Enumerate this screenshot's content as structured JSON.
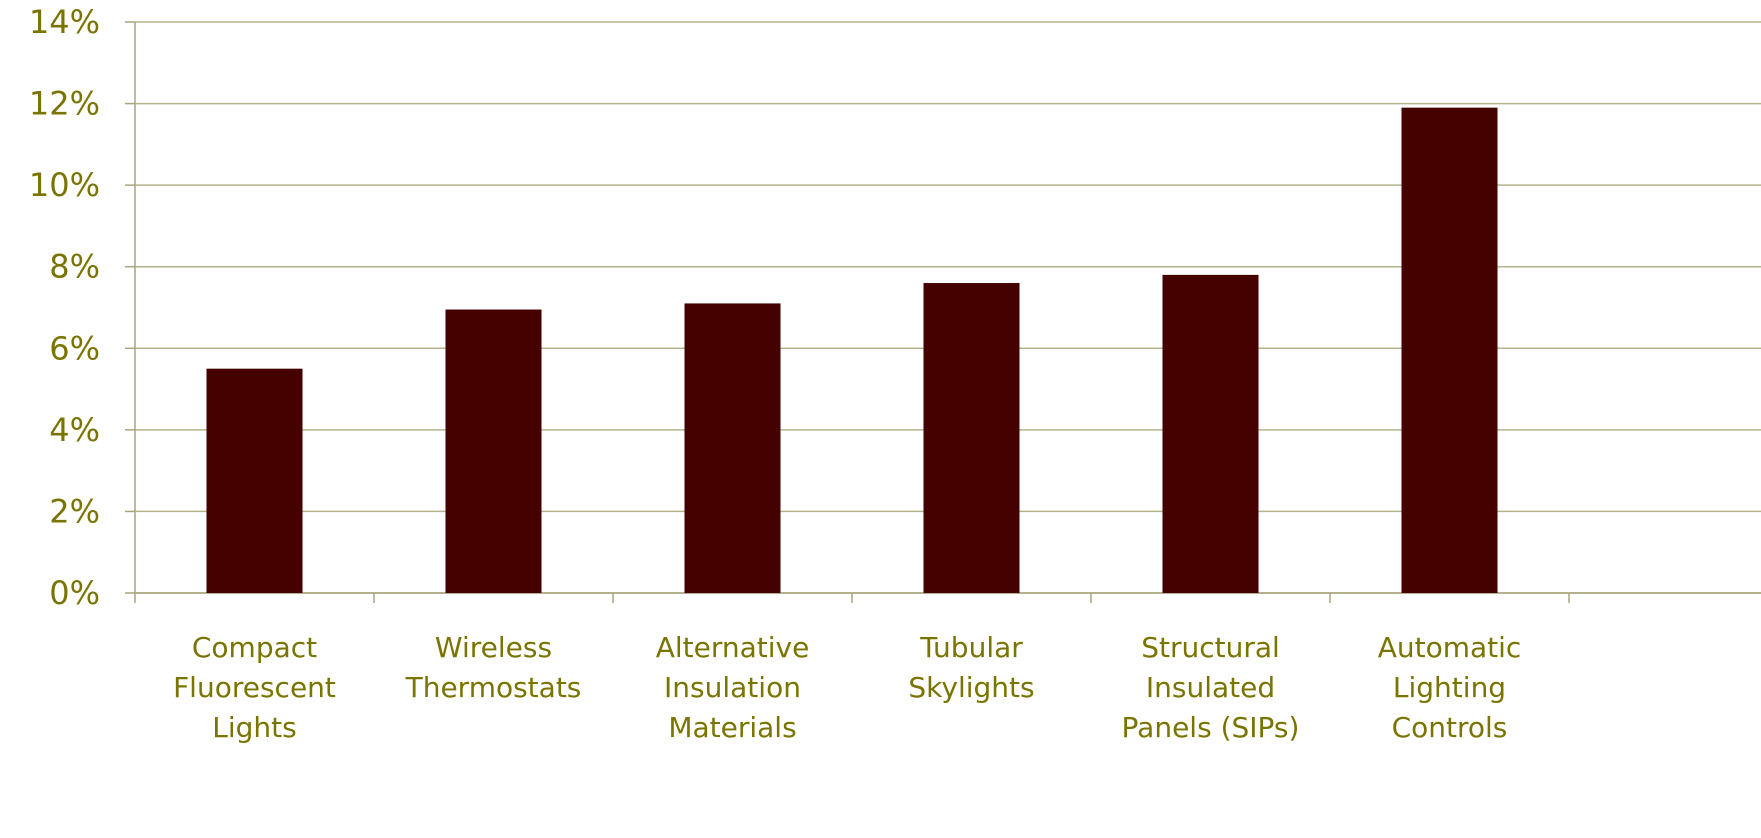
{
  "chart_data": {
    "type": "bar",
    "title": "",
    "xlabel": "",
    "ylabel": "",
    "categories": [
      [
        "Compact",
        "Fluorescent",
        "Lights"
      ],
      [
        "Wireless",
        "Thermostats"
      ],
      [
        "Alternative",
        "Insulation",
        "Materials"
      ],
      [
        "Tubular",
        "Skylights"
      ],
      [
        "Structural",
        "Insulated",
        "Panels (SIPs)"
      ],
      [
        "Automatic",
        "Lighting",
        "Controls"
      ]
    ],
    "values": [
      5.5,
      6.95,
      7.1,
      7.6,
      7.8,
      11.9
    ],
    "ylim": [
      0,
      14
    ],
    "yticks": [
      0,
      2,
      4,
      6,
      8,
      10,
      12,
      14
    ],
    "ytick_labels": [
      "0%",
      "2%",
      "4%",
      "6%",
      "8%",
      "10%",
      "12%",
      "14%"
    ],
    "grid": true,
    "colors": {
      "bar": "#450000",
      "grid": "#b5b38a",
      "axis_text": "#7a7500",
      "axis_line": "#a8a67d"
    }
  }
}
